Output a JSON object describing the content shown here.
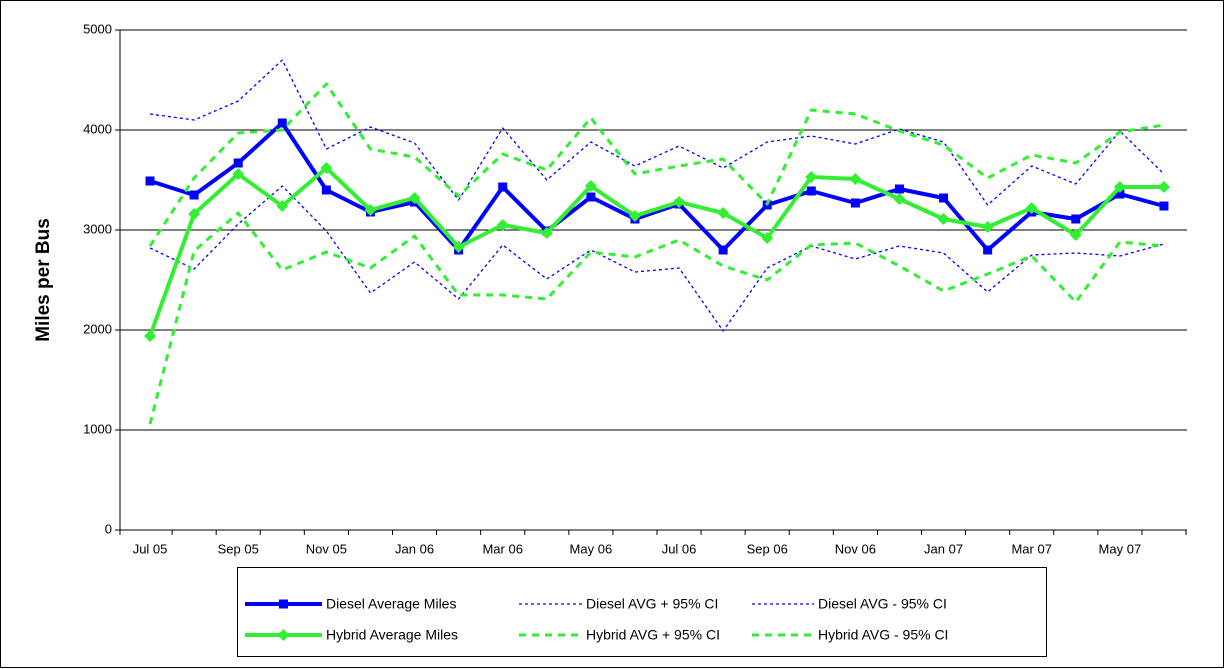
{
  "chart_data": {
    "type": "line",
    "y_label": "Miles per Bus",
    "categories": [
      "Jul 05",
      null,
      "Sep 05",
      null,
      "Nov 05",
      null,
      "Jan 06",
      null,
      "Mar 06",
      null,
      "May 06",
      null,
      "Jul 06",
      null,
      "Sep 06",
      null,
      "Nov 06",
      null,
      "Jan 07",
      null,
      "Mar 07",
      null,
      "May 07",
      null
    ],
    "ylim": [
      0,
      5000
    ],
    "yticks": [
      0,
      1000,
      2000,
      3000,
      4000,
      5000
    ],
    "grid": true,
    "legend": "bottom",
    "series": [
      {
        "name": "Diesel Average Miles",
        "color": "#0000ff",
        "style": "solid",
        "marker": "square",
        "values": [
          3490,
          3350,
          3670,
          4070,
          3400,
          3180,
          3280,
          2800,
          3430,
          2990,
          3330,
          3110,
          3260,
          2800,
          3250,
          3390,
          3270,
          3410,
          3320,
          2800,
          3180,
          3110,
          3360,
          3240
        ]
      },
      {
        "name": "Diesel AVG + 95% CI",
        "color": "#0000ff",
        "style": "dotted",
        "values": [
          4160,
          4100,
          4290,
          4700,
          3810,
          4030,
          3870,
          3300,
          4020,
          3500,
          3880,
          3640,
          3840,
          3620,
          3880,
          3940,
          3860,
          4010,
          3880,
          3250,
          3640,
          3460,
          3990,
          3560
        ]
      },
      {
        "name": "Diesel AVG - 95% CI",
        "color": "#0000ff",
        "style": "dotted",
        "values": [
          2820,
          2610,
          3060,
          3440,
          2990,
          2370,
          2680,
          2310,
          2850,
          2510,
          2800,
          2580,
          2620,
          1990,
          2620,
          2840,
          2710,
          2840,
          2770,
          2380,
          2750,
          2770,
          2740,
          2860
        ]
      },
      {
        "name": "Hybrid Average Miles",
        "color": "#33ee33",
        "style": "solid",
        "marker": "diamond",
        "values": [
          1940,
          3160,
          3560,
          3240,
          3620,
          3200,
          3320,
          2830,
          3050,
          2970,
          3440,
          3140,
          3280,
          3170,
          2920,
          3530,
          3510,
          3310,
          3110,
          3030,
          3220,
          2950,
          3430,
          3430
        ]
      },
      {
        "name": "Hybrid AVG + 95% CI",
        "color": "#33ee33",
        "style": "dashed",
        "values": [
          2840,
          3520,
          3970,
          4000,
          4460,
          3810,
          3730,
          3340,
          3760,
          3600,
          4120,
          3560,
          3640,
          3710,
          3260,
          4200,
          4160,
          3990,
          3850,
          3520,
          3750,
          3670,
          3980,
          4050
        ]
      },
      {
        "name": "Hybrid AVG - 95% CI",
        "color": "#33ee33",
        "style": "dashed",
        "values": [
          1060,
          2790,
          3170,
          2600,
          2780,
          2620,
          2940,
          2350,
          2350,
          2310,
          2780,
          2730,
          2900,
          2640,
          2500,
          2850,
          2870,
          2640,
          2390,
          2560,
          2740,
          2280,
          2880,
          2840
        ]
      }
    ]
  }
}
